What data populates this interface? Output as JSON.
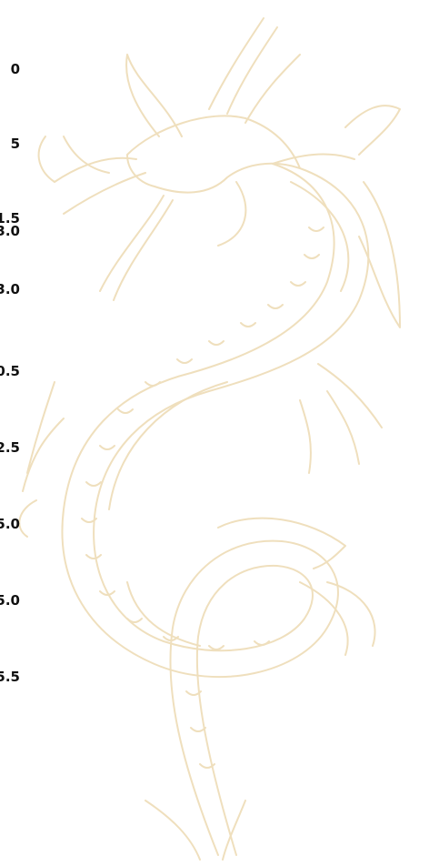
{
  "labels": [
    "0",
    "5",
    "1.5",
    "3.0",
    "3.0",
    "0.5",
    "2.5",
    "5.0",
    "5.0",
    "5.5"
  ]
}
